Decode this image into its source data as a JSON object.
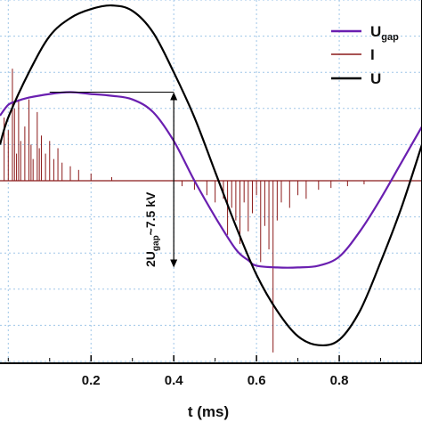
{
  "chart_data": {
    "type": "line",
    "xlabel": "t (ms)",
    "xlim": [
      -0.02,
      1.0
    ],
    "ylim": [
      -1.0,
      1.0
    ],
    "x_ticks": [
      0.2,
      0.4,
      0.6,
      0.8
    ],
    "x_tick_labels": [
      "0.2",
      "0.4",
      "0.6",
      "0.8"
    ],
    "y_tick_labels_visible": false,
    "grid": "dotted-blue",
    "legend_position": "top-right",
    "colors": {
      "U_gap": "#6a1fb0",
      "I": "#8b1a1a",
      "U": "#000000",
      "grid": "#9fc6e8",
      "frame": "#000000"
    },
    "series": [
      {
        "key": "U_gap",
        "name": "U",
        "name_sub": "gap",
        "x": [
          -0.02,
          0.0,
          0.02,
          0.05,
          0.1,
          0.15,
          0.2,
          0.25,
          0.3,
          0.35,
          0.4,
          0.45,
          0.5,
          0.55,
          0.58,
          0.6,
          0.65,
          0.7,
          0.75,
          0.8,
          0.85,
          0.9,
          0.95,
          1.0
        ],
        "values": [
          0.36,
          0.42,
          0.44,
          0.46,
          0.48,
          0.49,
          0.48,
          0.47,
          0.45,
          0.38,
          0.22,
          0.0,
          -0.2,
          -0.38,
          -0.44,
          -0.47,
          -0.48,
          -0.48,
          -0.47,
          -0.42,
          -0.28,
          -0.1,
          0.1,
          0.3
        ]
      },
      {
        "key": "U",
        "name": "U",
        "x": [
          -0.02,
          0.0,
          0.05,
          0.1,
          0.15,
          0.2,
          0.25,
          0.3,
          0.35,
          0.4,
          0.45,
          0.5,
          0.55,
          0.6,
          0.65,
          0.7,
          0.75,
          0.8,
          0.85,
          0.9,
          0.95,
          1.0
        ],
        "values": [
          0.2,
          0.35,
          0.6,
          0.8,
          0.9,
          0.95,
          0.97,
          0.94,
          0.82,
          0.6,
          0.35,
          0.05,
          -0.25,
          -0.52,
          -0.72,
          -0.86,
          -0.91,
          -0.88,
          -0.72,
          -0.45,
          -0.15,
          0.2
        ]
      },
      {
        "key": "I",
        "name": "I",
        "baseline": 0.0,
        "spikes": [
          [
            -0.01,
            0.35
          ],
          [
            0.0,
            0.28
          ],
          [
            0.01,
            0.62
          ],
          [
            0.015,
            0.4
          ],
          [
            0.02,
            0.15
          ],
          [
            0.025,
            0.45
          ],
          [
            0.03,
            0.22
          ],
          [
            0.04,
            0.3
          ],
          [
            0.05,
            0.45
          ],
          [
            0.055,
            0.2
          ],
          [
            0.06,
            0.12
          ],
          [
            0.07,
            0.38
          ],
          [
            0.075,
            0.18
          ],
          [
            0.08,
            0.25
          ],
          [
            0.09,
            0.15
          ],
          [
            0.1,
            0.22
          ],
          [
            0.11,
            0.12
          ],
          [
            0.12,
            0.18
          ],
          [
            0.13,
            0.1
          ],
          [
            0.15,
            0.08
          ],
          [
            0.17,
            0.06
          ],
          [
            0.2,
            0.04
          ],
          [
            0.25,
            0.02
          ],
          [
            0.42,
            -0.03
          ],
          [
            0.45,
            -0.05
          ],
          [
            0.48,
            -0.08
          ],
          [
            0.5,
            -0.12
          ],
          [
            0.52,
            -0.1
          ],
          [
            0.53,
            -0.3
          ],
          [
            0.54,
            -0.15
          ],
          [
            0.55,
            -0.22
          ],
          [
            0.56,
            -0.35
          ],
          [
            0.57,
            -0.12
          ],
          [
            0.58,
            -0.28
          ],
          [
            0.59,
            -0.18
          ],
          [
            0.6,
            -0.08
          ],
          [
            0.61,
            -0.45
          ],
          [
            0.62,
            -0.25
          ],
          [
            0.63,
            -0.38
          ],
          [
            0.64,
            -0.95
          ],
          [
            0.65,
            -0.22
          ],
          [
            0.66,
            -0.12
          ],
          [
            0.68,
            -0.15
          ],
          [
            0.7,
            -0.08
          ],
          [
            0.72,
            -0.1
          ],
          [
            0.75,
            -0.05
          ],
          [
            0.78,
            -0.04
          ],
          [
            0.82,
            -0.03
          ],
          [
            0.86,
            -0.02
          ]
        ]
      }
    ],
    "annotation": {
      "text_main": "2U",
      "text_sub": "gap",
      "text_rest": "~7.5 kV",
      "x": 0.4,
      "y_top": 0.49,
      "y_bottom": -0.48
    }
  }
}
